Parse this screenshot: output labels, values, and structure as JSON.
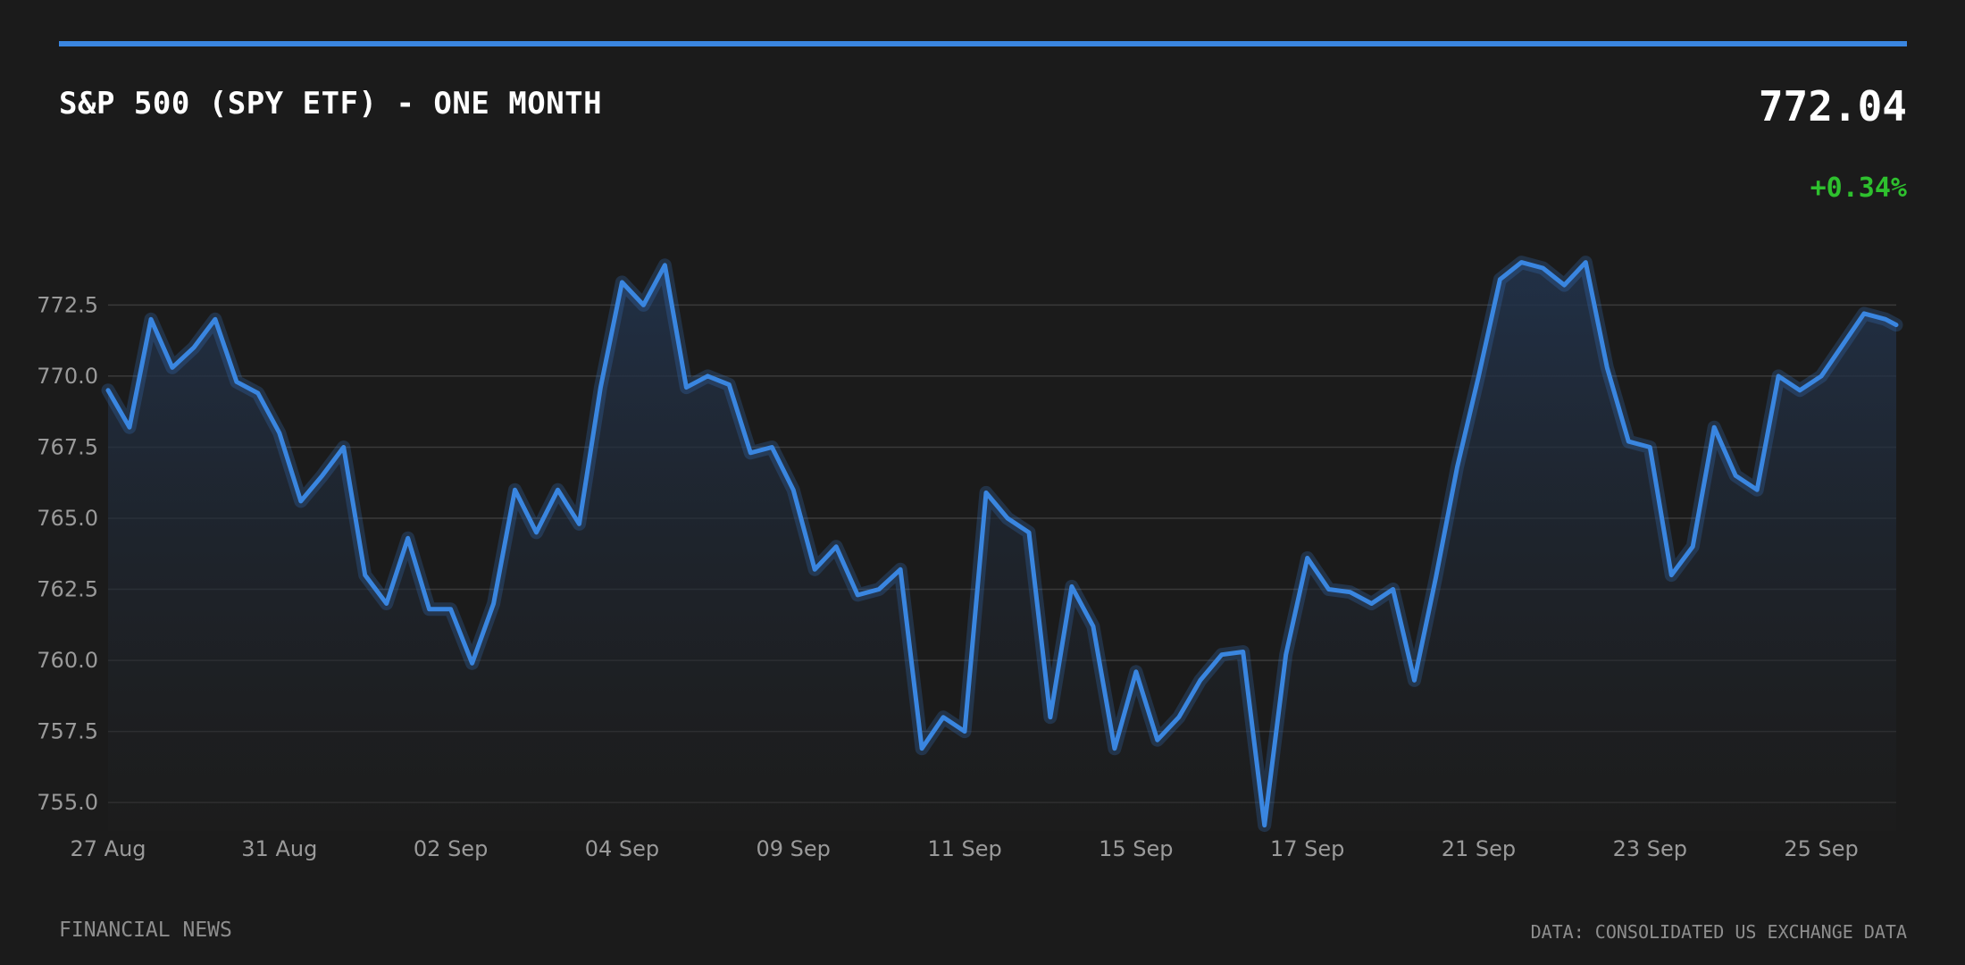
{
  "header": {
    "title": "S&P 500 (SPY ETF) - ONE MONTH",
    "price": "772.04",
    "change": "+0.34%"
  },
  "footer": {
    "source_left": "FINANCIAL NEWS",
    "source_right": "DATA: CONSOLIDATED US EXCHANGE DATA"
  },
  "colors": {
    "background": "#1b1b1b",
    "accent": "#3a86e0",
    "line": "#3a86e0",
    "positive": "#2ec02e",
    "grid": "#3a3a3a",
    "tick_text": "#9a9a9a"
  },
  "chart_data": {
    "type": "area",
    "title": "S&P 500 (SPY ETF) - ONE MONTH",
    "ylim": [
      754,
      776
    ],
    "ylabel": "",
    "xlabel": "",
    "grid": true,
    "y_ticks": [
      755.0,
      757.5,
      760.0,
      762.5,
      765.0,
      767.5,
      770.0,
      772.5
    ],
    "y_tick_labels": [
      "755.0",
      "757.5",
      "760.0",
      "762.5",
      "765.0",
      "767.5",
      "770.0",
      "772.5"
    ],
    "x_ticks": [
      0,
      8,
      16,
      24,
      32,
      40,
      48,
      56,
      64,
      72,
      80
    ],
    "x_tick_labels": [
      "27 Aug",
      "31 Aug",
      "02 Sep",
      "04 Sep",
      "09 Sep",
      "11 Sep",
      "15 Sep",
      "17 Sep",
      "21 Sep",
      "23 Sep",
      "25 Sep"
    ],
    "x_range": [
      0,
      83.5
    ],
    "series": [
      {
        "x": [
          0,
          1,
          2,
          3,
          4,
          5,
          6,
          7,
          8,
          9,
          10,
          11,
          12,
          13,
          14,
          15,
          16,
          17,
          18,
          19,
          20,
          21,
          22,
          23,
          24,
          25,
          26,
          27,
          28,
          29,
          30,
          31,
          32,
          33,
          34,
          35,
          36,
          37,
          38,
          39,
          40,
          41,
          42,
          43,
          44,
          45,
          46,
          47,
          48,
          49,
          50,
          51,
          52,
          53,
          54,
          55,
          56,
          57,
          58,
          59,
          60,
          61,
          62,
          63,
          64,
          65,
          66,
          67,
          68,
          69,
          70,
          71,
          72,
          73,
          74,
          75,
          76,
          77,
          78,
          79,
          80,
          81,
          82,
          83,
          83.5
        ],
        "values": [
          769.5,
          768.2,
          772.0,
          770.3,
          771.0,
          772.0,
          769.8,
          769.4,
          768.0,
          765.6,
          766.5,
          767.5,
          763.0,
          762.0,
          764.3,
          761.8,
          761.8,
          759.9,
          762.0,
          766.0,
          764.5,
          766.0,
          764.8,
          769.6,
          773.3,
          772.5,
          773.9,
          769.6,
          770.0,
          769.7,
          767.3,
          767.5,
          766.0,
          763.2,
          764.0,
          762.3,
          762.5,
          763.2,
          756.9,
          758.0,
          757.5,
          765.9,
          765.0,
          764.5,
          758.0,
          762.6,
          761.2,
          756.9,
          759.6,
          757.2,
          758.0,
          759.3,
          760.2,
          760.3,
          754.2,
          760.2,
          763.6,
          762.5,
          762.4,
          762.0,
          762.5,
          759.3,
          762.9,
          766.8,
          770.0,
          773.4,
          774.0,
          773.8,
          773.2,
          774.0,
          770.3,
          767.7,
          767.5,
          763.0,
          764.0,
          768.2,
          766.5,
          766.0,
          770.0,
          769.5,
          770.0,
          771.1,
          772.2,
          772.0,
          771.8
        ]
      }
    ]
  }
}
